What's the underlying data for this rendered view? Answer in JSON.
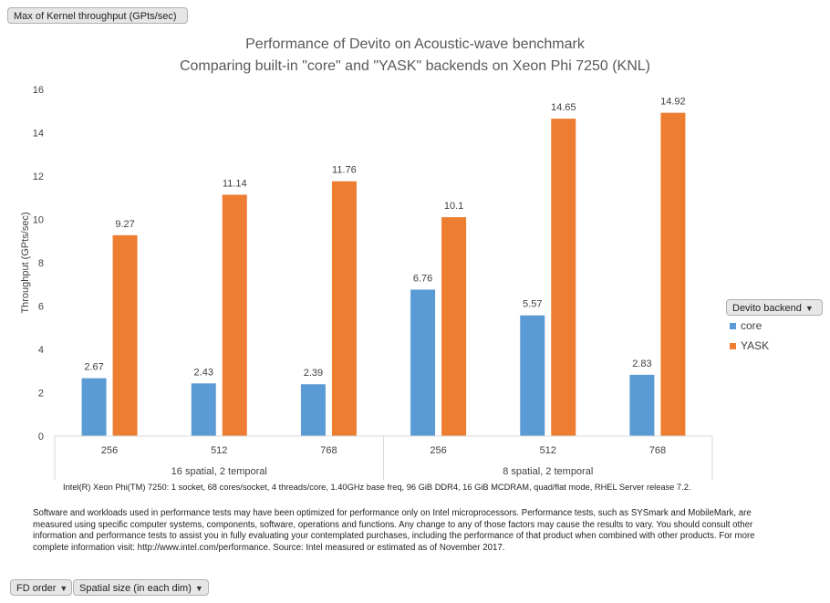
{
  "value_field": "Max of Kernel throughput (GPts/sec)",
  "filter_buttons": {
    "fd_order": "FD order",
    "spatial_size": "Spatial size (in each dim)"
  },
  "legend": {
    "title": "Devito backend"
  },
  "spec_note": "Intel(R) Xeon Phi(TM) 7250: 1 socket, 68 cores/socket, 4 threads/core, 1.40GHz base freq, 96 GiB DDR4, 16 GiB MCDRAM, quad/flat mode, RHEL Server release 7.2.",
  "disclaimer": "Software and workloads used in performance tests may have been optimized for performance only on Intel microprocessors. Performance tests, such as SYSmark and MobileMark, are measured using specific computer systems, components, software, operations and functions. Any change to any of those factors may cause the results to vary. You should consult other information and performance tests to assist you in fully evaluating your contemplated purchases, including the performance of that product when combined with other products. For more complete information visit: http://www.intel.com/performance. Source: Intel measured or estimated as of November 2017.",
  "chart_data": {
    "type": "bar",
    "title_line1": "Performance of Devito on Acoustic-wave benchmark",
    "title_line2": "Comparing built-in \"core\" and \"YASK\" backends on Xeon Phi 7250 (KNL)",
    "ylabel": "Throughput (GPts/sec)",
    "xlabel": "",
    "ylim": [
      0,
      16
    ],
    "yticks": [
      0,
      2,
      4,
      6,
      8,
      10,
      12,
      14,
      16
    ],
    "groups": [
      {
        "label": "16 spatial, 2 temporal",
        "categories": [
          "256",
          "512",
          "768"
        ]
      },
      {
        "label": "8 spatial, 2 temporal",
        "categories": [
          "256",
          "512",
          "768"
        ]
      }
    ],
    "categories": [
      "256",
      "512",
      "768",
      "256",
      "512",
      "768"
    ],
    "series": [
      {
        "name": "core",
        "color": "#5b9bd5",
        "values": [
          2.67,
          2.43,
          2.39,
          6.76,
          5.57,
          2.83
        ],
        "labels": [
          "2.67",
          "2.43",
          "2.39",
          "6.76",
          "5.57",
          "2.83"
        ]
      },
      {
        "name": "YASK",
        "color": "#ed7d31",
        "values": [
          9.27,
          11.14,
          11.76,
          10.1,
          14.65,
          14.92
        ],
        "labels": [
          "9.27",
          "11.14",
          "11.76",
          "10.1",
          "14.65",
          "14.92"
        ]
      }
    ],
    "grid": false,
    "legend_position": "right"
  }
}
